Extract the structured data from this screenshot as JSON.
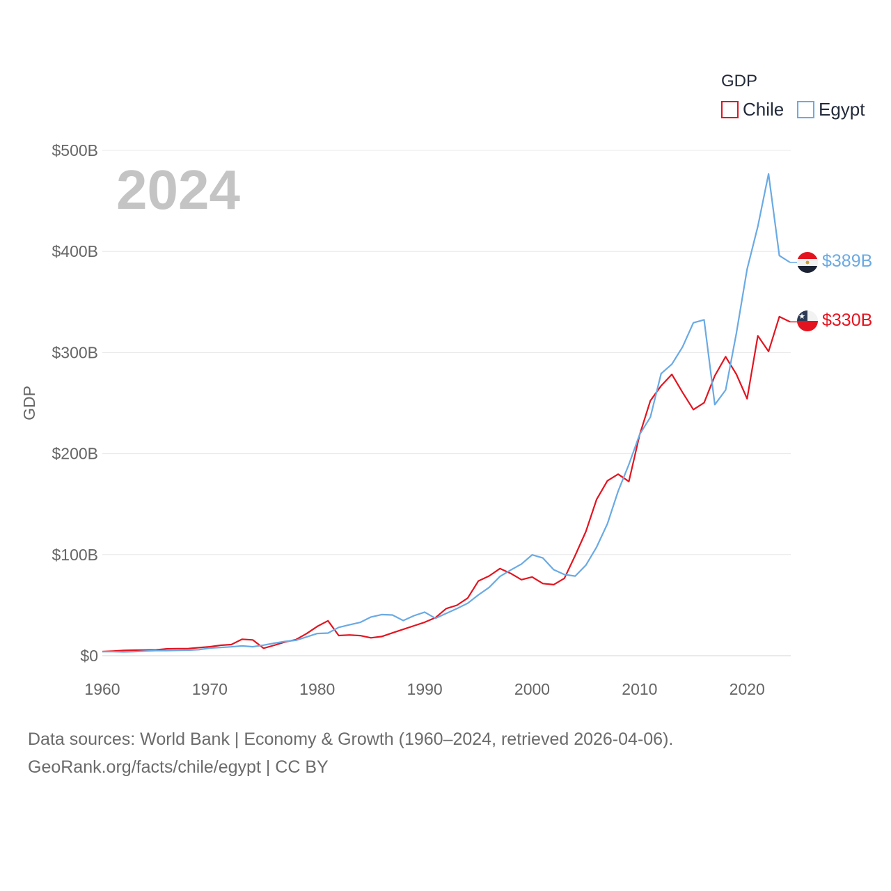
{
  "chart_data": {
    "type": "line",
    "year_label": "2024",
    "ylabel": "GDP",
    "xlabel": "",
    "ylim": [
      0,
      500
    ],
    "xlim": [
      1960,
      2024
    ],
    "y_ticks": [
      {
        "value": 0,
        "label": "$0"
      },
      {
        "value": 100,
        "label": "$100B"
      },
      {
        "value": 200,
        "label": "$200B"
      },
      {
        "value": 300,
        "label": "$300B"
      },
      {
        "value": 400,
        "label": "$400B"
      },
      {
        "value": 500,
        "label": "$500B"
      }
    ],
    "x_ticks": [
      {
        "value": 1960,
        "label": "1960"
      },
      {
        "value": 1970,
        "label": "1970"
      },
      {
        "value": 1980,
        "label": "1980"
      },
      {
        "value": 1990,
        "label": "1990"
      },
      {
        "value": 2000,
        "label": "2000"
      },
      {
        "value": 2010,
        "label": "2010"
      },
      {
        "value": 2020,
        "label": "2020"
      }
    ],
    "grid": true,
    "legend": {
      "title": "GDP",
      "position": "top-right"
    },
    "x": [
      1960,
      1961,
      1962,
      1963,
      1964,
      1965,
      1966,
      1967,
      1968,
      1969,
      1970,
      1971,
      1972,
      1973,
      1974,
      1975,
      1976,
      1977,
      1978,
      1979,
      1980,
      1981,
      1982,
      1983,
      1984,
      1985,
      1986,
      1987,
      1988,
      1989,
      1990,
      1991,
      1992,
      1993,
      1994,
      1995,
      1996,
      1997,
      1998,
      1999,
      2000,
      2001,
      2002,
      2003,
      2004,
      2005,
      2006,
      2007,
      2008,
      2009,
      2010,
      2011,
      2012,
      2013,
      2014,
      2015,
      2016,
      2017,
      2018,
      2019,
      2020,
      2021,
      2022,
      2023,
      2024
    ],
    "series": [
      {
        "name": "Chile",
        "color": "#e3141f",
        "end_label": "$330B",
        "values": [
          4.1,
          4.6,
          5.3,
          5.5,
          5.6,
          5.8,
          6.8,
          7.0,
          7.1,
          8.0,
          8.9,
          10.3,
          11.0,
          16.3,
          15.6,
          7.4,
          10.3,
          13.6,
          15.9,
          21.8,
          29.0,
          34.6,
          20.0,
          20.5,
          19.9,
          17.7,
          19.0,
          22.6,
          26.1,
          29.6,
          33.1,
          37.7,
          46.6,
          49.9,
          57.0,
          74.0,
          78.9,
          86.2,
          81.5,
          75.2,
          77.9,
          71.4,
          70.3,
          76.6,
          99.2,
          122.9,
          154.7,
          173.1,
          179.6,
          172.4,
          218.5,
          252.3,
          267.1,
          278.4,
          260.5,
          243.5,
          250.3,
          277.0,
          295.9,
          278.6,
          254.3,
          316.5,
          301.0,
          335.5,
          330.3
        ]
      },
      {
        "name": "Egypt",
        "color": "#6aaae4",
        "end_label": "$389B",
        "values": [
          4.0,
          4.0,
          3.8,
          4.0,
          4.6,
          5.0,
          5.0,
          5.3,
          5.5,
          6.0,
          7.6,
          8.2,
          8.8,
          9.7,
          8.9,
          10.5,
          12.4,
          14.1,
          15.2,
          18.5,
          22.0,
          22.4,
          28.0,
          30.6,
          33.0,
          38.3,
          40.7,
          40.3,
          34.8,
          39.6,
          43.1,
          37.0,
          41.9,
          46.6,
          51.9,
          60.2,
          67.6,
          78.4,
          84.8,
          90.7,
          99.8,
          96.7,
          85.1,
          80.3,
          78.8,
          89.6,
          107.5,
          130.5,
          162.8,
          189.1,
          218.9,
          236.0,
          279.1,
          288.4,
          305.6,
          329.4,
          332.4,
          248.4,
          262.8,
          318.7,
          382.5,
          424.7,
          476.7,
          395.9,
          389.1
        ]
      }
    ]
  },
  "source": {
    "line1": "Data sources: World Bank | Economy & Growth (1960–2024, retrieved 2026-04-06).",
    "line2": "GeoRank.org/facts/chile/egypt | CC BY"
  }
}
